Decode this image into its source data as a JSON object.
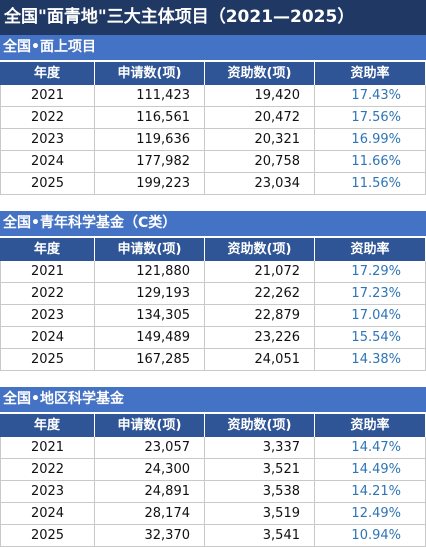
{
  "title": "全国\"面青地\"三大主体项目（2021—2025）",
  "sections": [
    {
      "title": "全国•面上项目",
      "columns": [
        "年度",
        "申请数(项)",
        "资助数(项)",
        "资助率"
      ],
      "rows": [
        [
          "2021",
          "111,423",
          "19,420",
          "17.43%"
        ],
        [
          "2022",
          "116,561",
          "20,472",
          "17.56%"
        ],
        [
          "2023",
          "119,636",
          "20,321",
          "16.99%"
        ],
        [
          "2024",
          "177,982",
          "20,758",
          "11.66%"
        ],
        [
          "2025",
          "199,223",
          "23,034",
          "11.56%"
        ]
      ]
    },
    {
      "title": "全国•青年科学基金（C类）",
      "columns": [
        "年度",
        "申请数(项)",
        "资助数(项)",
        "资助率"
      ],
      "rows": [
        [
          "2021",
          "121,880",
          "21,072",
          "17.29%"
        ],
        [
          "2022",
          "129,193",
          "22,262",
          "17.23%"
        ],
        [
          "2023",
          "134,305",
          "22,879",
          "17.04%"
        ],
        [
          "2024",
          "149,489",
          "23,226",
          "15.54%"
        ],
        [
          "2025",
          "167,285",
          "24,051",
          "14.38%"
        ]
      ]
    },
    {
      "title": "全国•地区科学基金",
      "columns": [
        "年度",
        "申请数(项)",
        "资助数(项)",
        "资助率"
      ],
      "rows": [
        [
          "2021",
          "23,057",
          "3,337",
          "14.47%"
        ],
        [
          "2022",
          "24,300",
          "3,521",
          "14.49%"
        ],
        [
          "2023",
          "24,891",
          "3,538",
          "14.21%"
        ],
        [
          "2024",
          "28,174",
          "3,519",
          "12.49%"
        ],
        [
          "2025",
          "32,370",
          "3,541",
          "10.94%"
        ]
      ]
    }
  ]
}
